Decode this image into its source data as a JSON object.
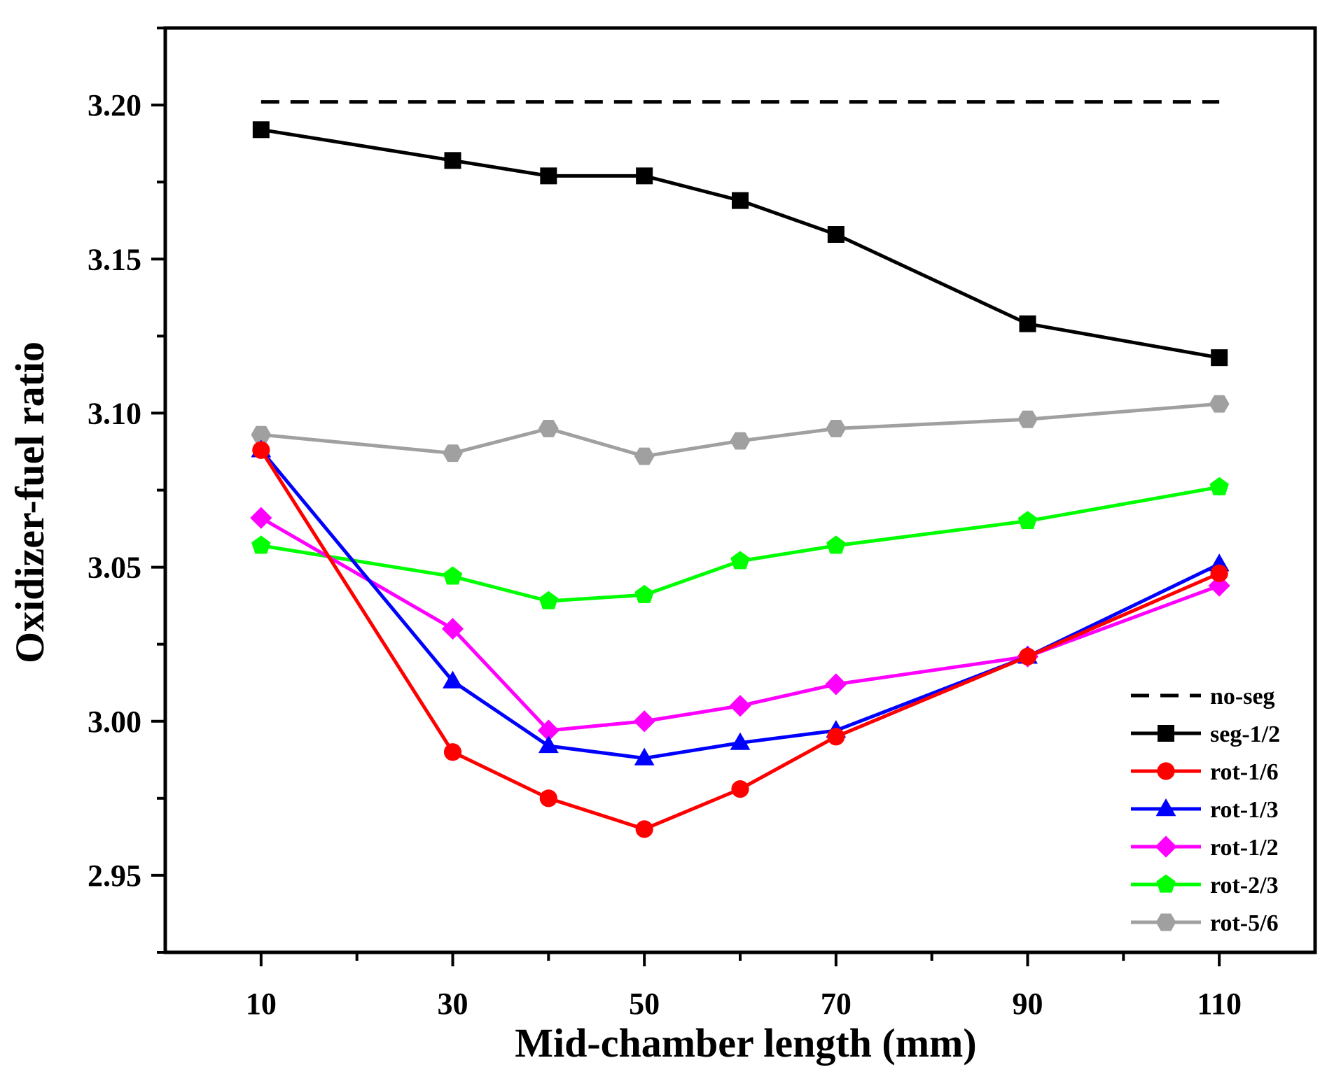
{
  "chart_data": {
    "type": "line",
    "title": "",
    "xlabel": "Mid-chamber length (mm)",
    "ylabel": "Oxidizer-fuel ratio",
    "xlim": [
      0,
      120
    ],
    "ylim": [
      2.925,
      3.225
    ],
    "xticks": [
      10,
      30,
      50,
      70,
      90,
      110
    ],
    "xtick_labels": [
      "10",
      "30",
      "50",
      "70",
      "90",
      "110"
    ],
    "yticks": [
      2.95,
      3.0,
      3.05,
      3.1,
      3.15,
      3.2
    ],
    "ytick_labels": [
      "2.95",
      "3.00",
      "3.05",
      "3.10",
      "3.15",
      "3.20"
    ],
    "grid": false,
    "legend_position": "bottom-right",
    "x": [
      10,
      30,
      40,
      50,
      60,
      70,
      90,
      110
    ],
    "series": [
      {
        "name": "no-seg",
        "color": "#000000",
        "marker": "none",
        "dashed": true,
        "values": [
          3.201,
          3.201,
          3.201,
          3.201,
          3.201,
          3.201,
          3.201,
          3.201
        ]
      },
      {
        "name": "seg-1/2",
        "color": "#000000",
        "marker": "square",
        "values": [
          3.192,
          3.182,
          3.177,
          3.177,
          3.169,
          3.158,
          3.129,
          3.118
        ]
      },
      {
        "name": "rot-1/6",
        "color": "#ff0000",
        "marker": "circle",
        "values": [
          3.088,
          2.99,
          2.975,
          2.965,
          2.978,
          2.995,
          3.021,
          3.048
        ]
      },
      {
        "name": "rot-1/3",
        "color": "#0000ff",
        "marker": "triangle",
        "values": [
          3.088,
          3.013,
          2.992,
          2.988,
          2.993,
          2.997,
          3.021,
          3.051
        ]
      },
      {
        "name": "rot-1/2",
        "color": "#ff00ff",
        "marker": "diamond",
        "values": [
          3.066,
          3.03,
          2.997,
          3.0,
          3.005,
          3.012,
          3.021,
          3.044
        ]
      },
      {
        "name": "rot-2/3",
        "color": "#00ff00",
        "marker": "pentagon",
        "values": [
          3.057,
          3.047,
          3.039,
          3.041,
          3.052,
          3.057,
          3.065,
          3.076
        ]
      },
      {
        "name": "rot-5/6",
        "color": "#a0a0a0",
        "marker": "hexagon",
        "values": [
          3.093,
          3.087,
          3.095,
          3.086,
          3.091,
          3.095,
          3.098,
          3.103
        ]
      }
    ]
  }
}
